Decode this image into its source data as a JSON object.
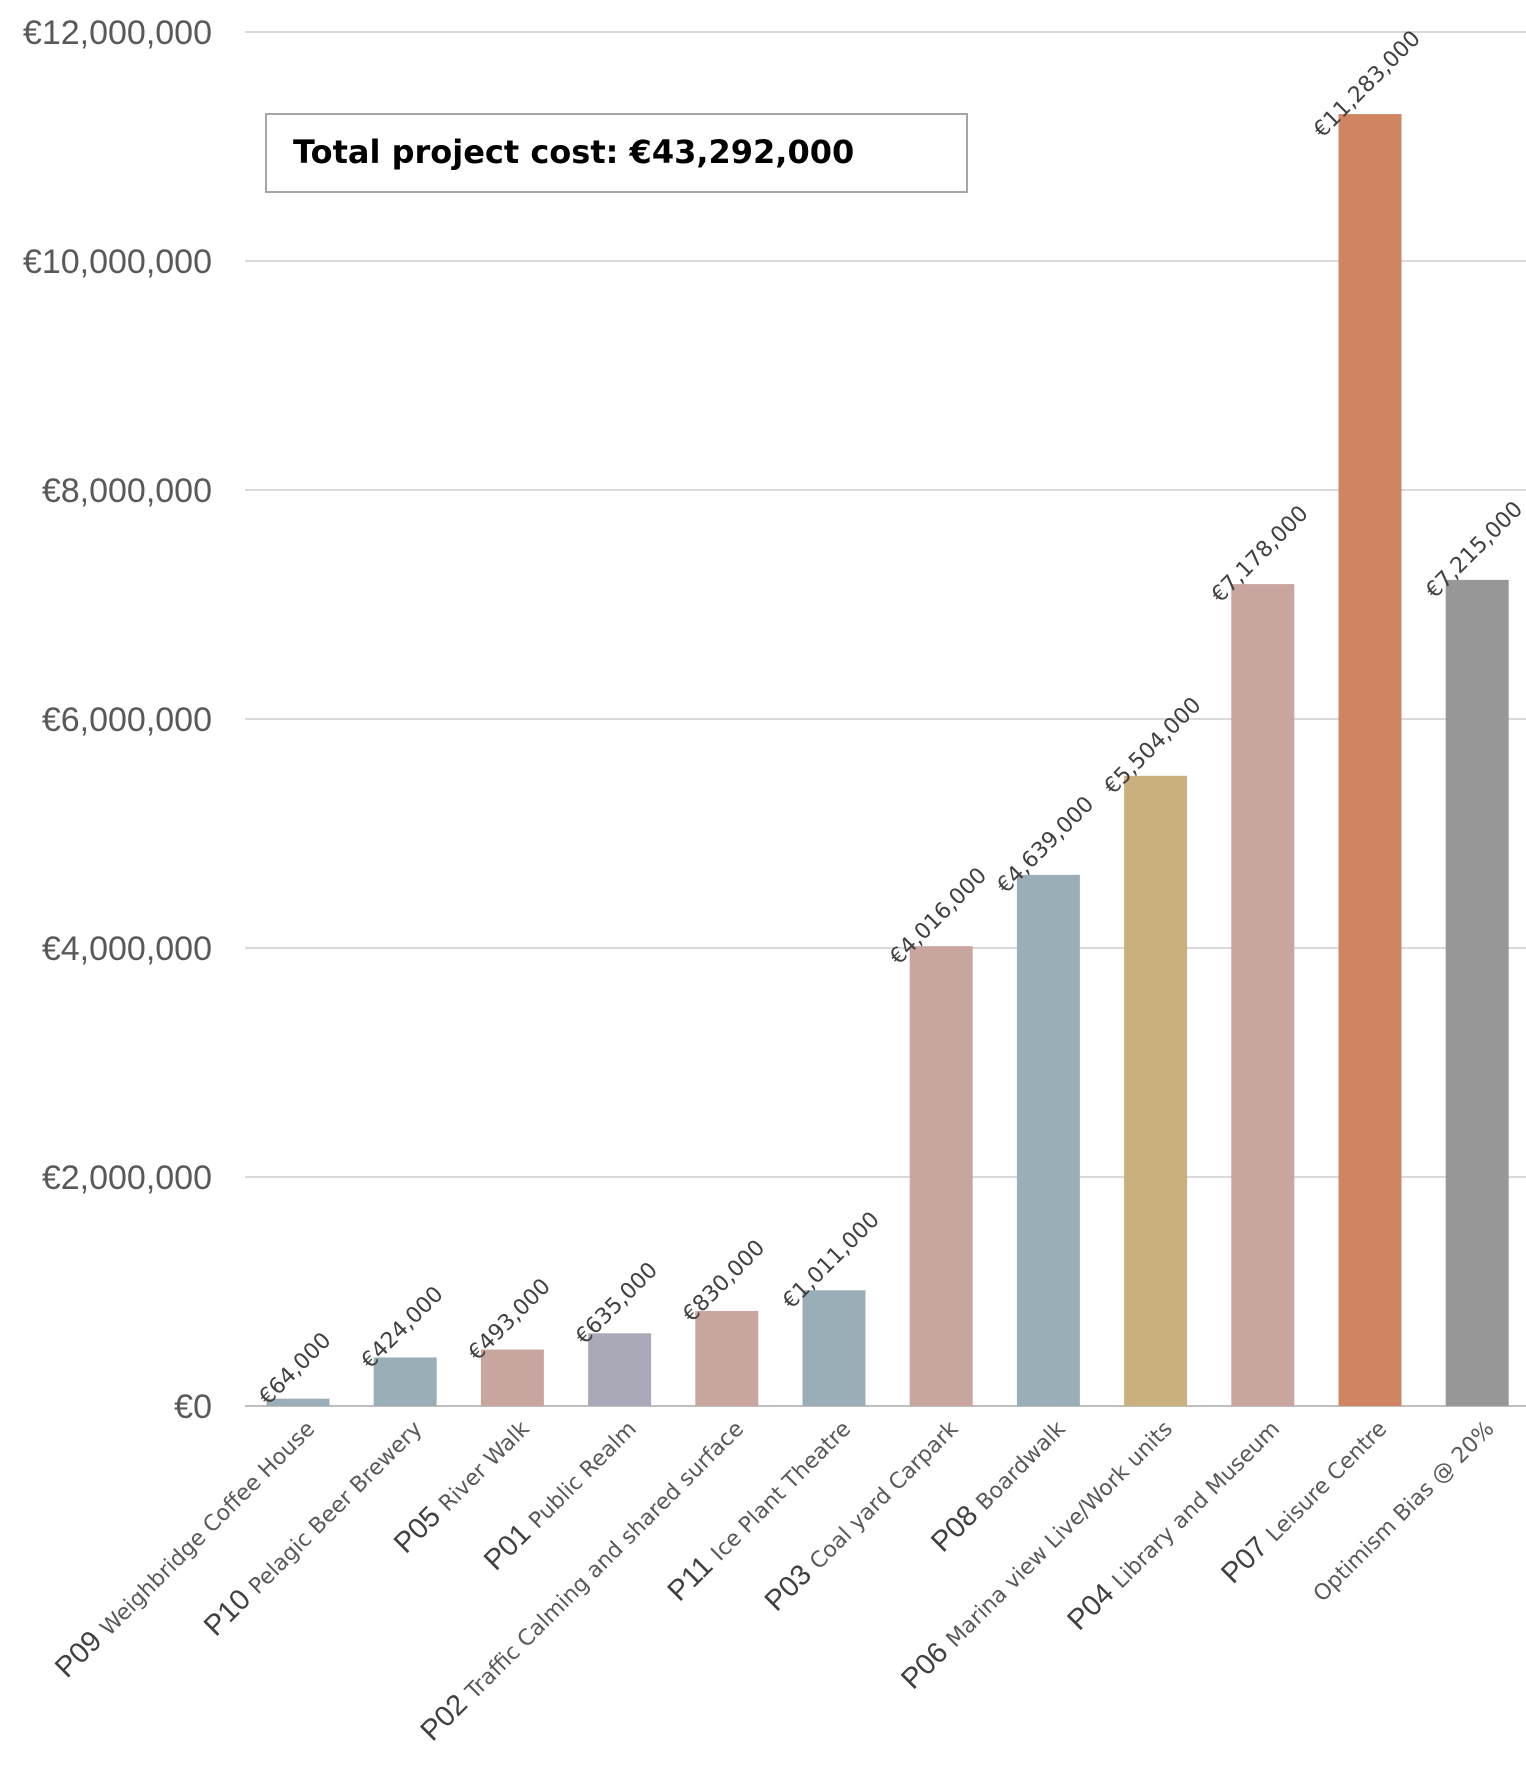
{
  "chart_data": {
    "type": "bar",
    "title": "",
    "xlabel": "",
    "ylabel": "",
    "ylim": [
      0,
      12000000
    ],
    "y_ticks": [
      "€0",
      "€2,000,000",
      "€4,000,000",
      "€6,000,000",
      "€8,000,000",
      "€10,000,000",
      "€12,000,000"
    ],
    "grid": true,
    "annotation": "Total project cost: €43,292,000",
    "categories": [
      {
        "code": "P09",
        "name": "Weighbridge Coffee House"
      },
      {
        "code": "P10",
        "name": "Pelagic Beer Brewery"
      },
      {
        "code": "P05",
        "name": "River Walk"
      },
      {
        "code": "P01",
        "name": "Public Realm"
      },
      {
        "code": "P02",
        "name": "Traffic Calming and shared surface"
      },
      {
        "code": "P11",
        "name": "Ice Plant Theatre"
      },
      {
        "code": "P03",
        "name": "Coal yard Carpark"
      },
      {
        "code": "P08",
        "name": "Boardwalk"
      },
      {
        "code": "P06",
        "name": "Marina view Live/Work units"
      },
      {
        "code": "P04",
        "name": "Library and Museum"
      },
      {
        "code": "P07",
        "name": "Leisure Centre"
      },
      {
        "code": "",
        "name": "Optimism Bias @ 20%"
      }
    ],
    "values": [
      64000,
      424000,
      493000,
      635000,
      830000,
      1011000,
      4016000,
      4639000,
      5504000,
      7178000,
      11283000,
      7215000
    ],
    "value_labels": [
      "€64,000",
      "€424,000",
      "€493,000",
      "€635,000",
      "€830,000",
      "€1,011,000",
      "€4,016,000",
      "€4,639,000",
      "€5,504,000",
      "€7,178,000",
      "€11,283,000",
      "€7,215,000"
    ],
    "colors": [
      "#9aaeb8",
      "#9aaeb8",
      "#c9a59f",
      "#aaa9b8",
      "#c9a59f",
      "#9aaeb8",
      "#c9a59f",
      "#9aaeb8",
      "#c9b07c",
      "#c9a59f",
      "#d08562",
      "#979797"
    ]
  }
}
